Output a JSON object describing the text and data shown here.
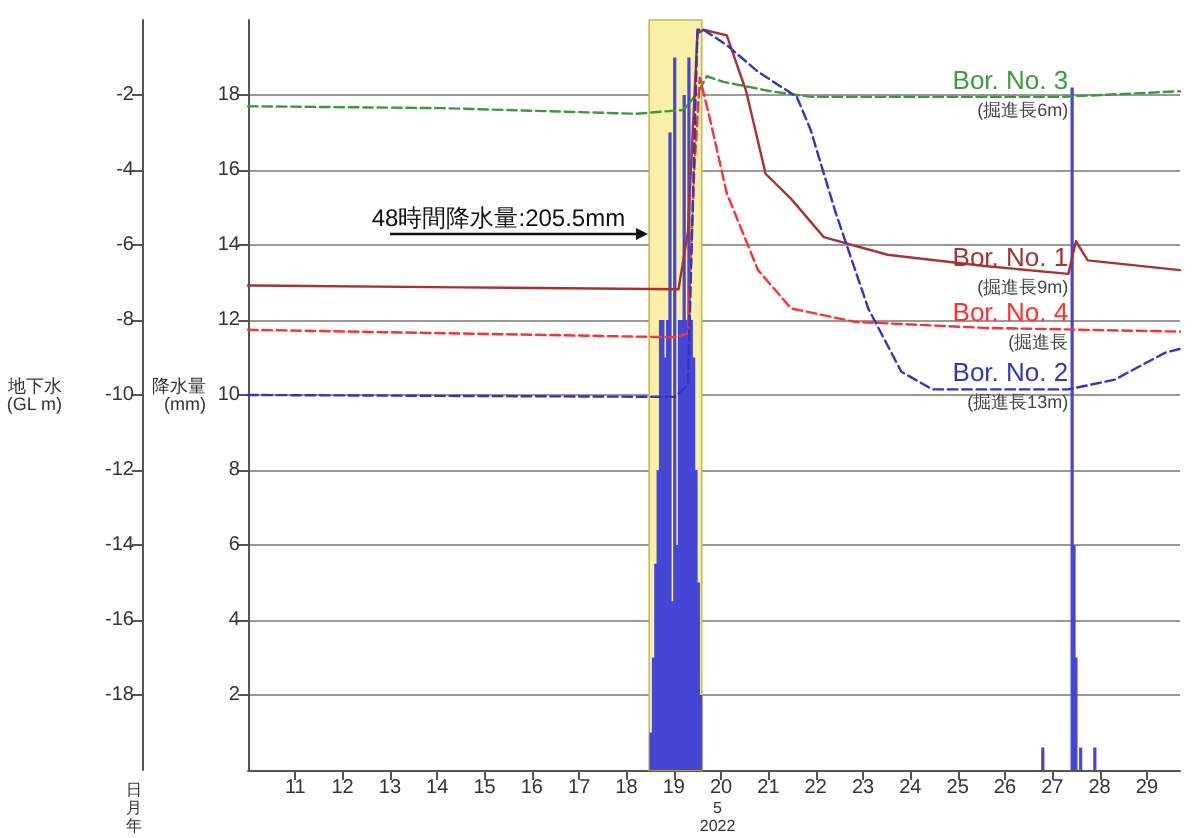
{
  "chart_data": {
    "type": "line",
    "y2label": "地下水\n(GL m)",
    "ylabel": "降水量\n(mm)",
    "xlim": [
      10,
      29.7
    ],
    "xticks": [
      11,
      12,
      13,
      14,
      15,
      16,
      17,
      18,
      19,
      20,
      21,
      22,
      23,
      24,
      25,
      26,
      27,
      28,
      29
    ],
    "y2lim": [
      -20,
      0
    ],
    "y2ticks": [
      -18,
      -16,
      -14,
      -12,
      -10,
      -8,
      -6,
      -4,
      -2
    ],
    "ylim": [
      0,
      20
    ],
    "yticks": [
      2,
      4,
      6,
      8,
      10,
      12,
      14,
      16,
      18
    ],
    "grid": "y",
    "marker": "none",
    "bands": [
      {
        "axis": "x",
        "from": 18.48,
        "to": 19.59,
        "label": "48時間降水量:205.5mm",
        "color": "#f7f0a6"
      }
    ],
    "annotations": [
      "日",
      "月",
      "年",
      "5",
      "2022",
      "(掘進長6m)",
      "(掘進長9m)",
      "(掘進長",
      "(掘進長13m)"
    ],
    "series": [
      {
        "type": "bar",
        "color": "#4646d6",
        "x": [
          18.52,
          18.57,
          18.62,
          18.67,
          18.72,
          18.77,
          18.82,
          18.87,
          18.92,
          18.97,
          19.02,
          19.07,
          19.12,
          19.17,
          19.22,
          19.27,
          19.32,
          19.37,
          19.42,
          19.47,
          19.52,
          19.57,
          26.8,
          27.42,
          27.46,
          27.5,
          27.6,
          27.9
        ],
        "values": [
          1,
          3,
          5.5,
          8,
          12,
          12,
          11,
          12,
          17,
          4.5,
          19,
          6,
          12,
          12,
          18,
          12,
          19,
          12,
          11,
          8,
          5,
          2,
          0.6,
          18.2,
          6,
          3,
          0.6,
          0.6
        ]
      },
      {
        "name": "Bor. No. 3",
        "axis": "y2",
        "color": "#3c9a3c",
        "line_style": "dashed",
        "x": [
          10,
          14.1,
          18.2,
          19.2,
          19.5,
          19.7,
          20.05,
          21.05,
          21.9,
          24.75,
          27.2,
          29.7
        ],
        "values": [
          -2.3,
          -2.35,
          -2.5,
          -2.4,
          -1.95,
          -1.5,
          -1.65,
          -1.9,
          -2.05,
          -2.05,
          -2.05,
          -1.9
        ]
      },
      {
        "name": "Bor. No. 1",
        "axis": "y2",
        "color": "#a83232",
        "line_style": "solid",
        "x": [
          10,
          14.5,
          19.1,
          19.3,
          19.5,
          19.63,
          20.12,
          20.53,
          20.94,
          21.48,
          22.17,
          23.52,
          25.57,
          27.34,
          27.5,
          27.75,
          29.7
        ],
        "values": [
          -7.08,
          -7.13,
          -7.18,
          -5.64,
          -0.36,
          -0.26,
          -0.41,
          -1.9,
          -4.1,
          -4.77,
          -5.79,
          -6.26,
          -6.56,
          -6.77,
          -5.9,
          -6.41,
          -6.67
        ]
      },
      {
        "name": "Bor. No. 4",
        "axis": "y2",
        "color": "#ff3030",
        "line_style": "dashed",
        "x": [
          10,
          19.02,
          19.3,
          19.43,
          19.55,
          19.75,
          20.12,
          20.78,
          21.48,
          22.83,
          25.57,
          29.7
        ],
        "values": [
          -8.26,
          -8.46,
          -8.36,
          -4.1,
          -1.54,
          -2.56,
          -4.62,
          -6.67,
          -7.69,
          -8.05,
          -8.21,
          -8.31
        ]
      },
      {
        "name": "Bor. No. 2",
        "axis": "y2",
        "color": "#3434c4",
        "line_style": "dashed",
        "x": [
          10,
          19.02,
          19.3,
          19.5,
          19.63,
          20.12,
          20.78,
          21.6,
          21.89,
          22.42,
          23.11,
          23.81,
          24.47,
          26.27,
          27.34,
          28.32,
          29.39,
          29.7
        ],
        "values": [
          -10,
          -10.05,
          -9.74,
          -0.26,
          -0.26,
          -0.67,
          -1.38,
          -2.05,
          -2.92,
          -5.13,
          -7.69,
          -9.38,
          -9.85,
          -9.85,
          -9.85,
          -9.59,
          -8.87,
          -8.77
        ]
      }
    ]
  }
}
